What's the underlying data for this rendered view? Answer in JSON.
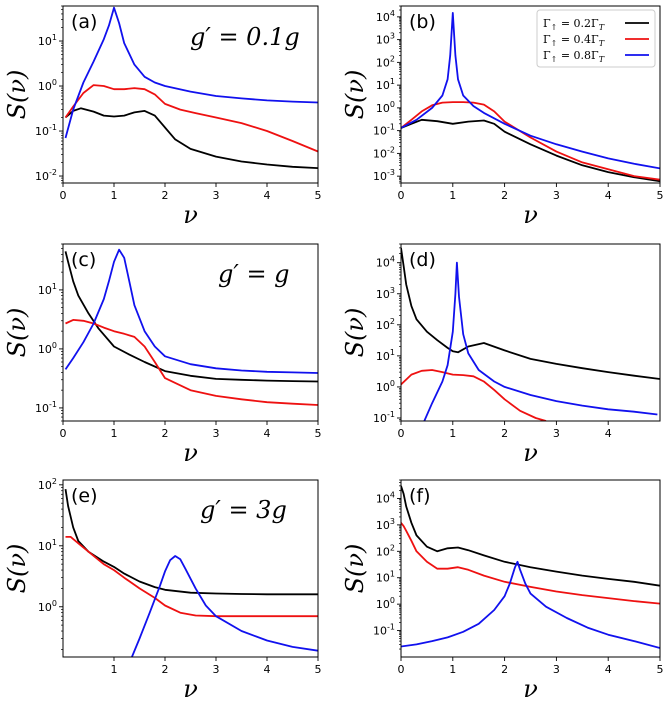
{
  "colors": {
    "black": "#000000",
    "red": "#ee1111",
    "blue": "#1111ee"
  },
  "legend": [
    {
      "label": "Γ↑ = 0.2Γ_T",
      "color": "#000000",
      "parts": [
        "Γ",
        "↑",
        " = 0.2Γ",
        "T"
      ]
    },
    {
      "label": "Γ↑ = 0.4Γ_T",
      "color": "#ee1111",
      "parts": [
        "Γ",
        "↑",
        " = 0.4Γ",
        "T"
      ]
    },
    {
      "label": "Γ↑ = 0.8Γ_T",
      "color": "#1111ee",
      "parts": [
        "Γ",
        "↑",
        " = 0.8Γ",
        "T"
      ]
    }
  ],
  "chart_data": [
    {
      "type": "line",
      "panel": "(a)",
      "annotation": "g′ = 0.1g",
      "xlabel": "ν",
      "ylabel": "S(ν)",
      "xlim": [
        0,
        5
      ],
      "ylim": [
        0.007,
        60
      ],
      "yscale": "log",
      "xticks": [
        "0",
        "1",
        "2",
        "3",
        "4",
        "5"
      ],
      "yticks": [
        {
          "v": 0.01,
          "e": "-2"
        },
        {
          "v": 0.1,
          "e": "-1"
        },
        {
          "v": 1,
          "e": "0"
        },
        {
          "v": 10,
          "e": "1"
        }
      ],
      "series": [
        {
          "color": "black",
          "x": [
            0.05,
            0.2,
            0.35,
            0.6,
            0.8,
            1.0,
            1.2,
            1.4,
            1.6,
            1.8,
            2.0,
            2.2,
            2.5,
            3.0,
            3.5,
            4.0,
            4.5,
            5.0
          ],
          "y": [
            0.2,
            0.28,
            0.32,
            0.27,
            0.22,
            0.21,
            0.22,
            0.26,
            0.28,
            0.22,
            0.12,
            0.065,
            0.04,
            0.027,
            0.021,
            0.018,
            0.016,
            0.015
          ]
        },
        {
          "color": "red",
          "x": [
            0.05,
            0.2,
            0.4,
            0.6,
            0.8,
            1.0,
            1.2,
            1.4,
            1.6,
            1.8,
            2.0,
            2.3,
            2.6,
            3.0,
            3.5,
            4.0,
            4.5,
            5.0
          ],
          "y": [
            0.2,
            0.35,
            0.7,
            1.05,
            1.0,
            0.85,
            0.85,
            0.9,
            0.85,
            0.65,
            0.4,
            0.3,
            0.25,
            0.2,
            0.15,
            0.1,
            0.06,
            0.035
          ]
        },
        {
          "color": "blue",
          "x": [
            0.05,
            0.2,
            0.4,
            0.6,
            0.8,
            0.9,
            1.0,
            1.1,
            1.2,
            1.4,
            1.6,
            1.8,
            2.0,
            2.5,
            3.0,
            3.5,
            4.0,
            4.5,
            5.0
          ],
          "y": [
            0.07,
            0.3,
            1.2,
            3.5,
            11,
            22,
            55,
            25,
            9,
            3.0,
            1.6,
            1.2,
            1.0,
            0.75,
            0.6,
            0.53,
            0.48,
            0.45,
            0.43
          ]
        }
      ]
    },
    {
      "type": "line",
      "panel": "(b)",
      "annotation": "",
      "xlabel": "ν",
      "ylabel": "S(ν)",
      "xlim": [
        0,
        5
      ],
      "ylim": [
        0.0005,
        30000
      ],
      "yscale": "log",
      "xticks": [
        "0",
        "1",
        "2",
        "3",
        "4",
        "5"
      ],
      "yticks": [
        {
          "v": 0.001,
          "e": "-3"
        },
        {
          "v": 0.01,
          "e": "-2"
        },
        {
          "v": 0.1,
          "e": "-1"
        },
        {
          "v": 1,
          "e": "0"
        },
        {
          "v": 10,
          "e": "1"
        },
        {
          "v": 100,
          "e": "2"
        },
        {
          "v": 1000,
          "e": "3"
        },
        {
          "v": 10000,
          "e": "4"
        }
      ],
      "series": [
        {
          "color": "black",
          "x": [
            0,
            0.2,
            0.4,
            0.7,
            1.0,
            1.3,
            1.6,
            1.8,
            2.0,
            2.5,
            3.0,
            3.5,
            4.0,
            4.5,
            5.0
          ],
          "y": [
            0.13,
            0.2,
            0.3,
            0.26,
            0.2,
            0.25,
            0.28,
            0.2,
            0.09,
            0.025,
            0.008,
            0.003,
            0.0015,
            0.0009,
            0.0006
          ]
        },
        {
          "color": "red",
          "x": [
            0,
            0.2,
            0.4,
            0.6,
            0.8,
            1.0,
            1.2,
            1.4,
            1.6,
            1.8,
            2.0,
            2.5,
            3.0,
            3.5,
            4.0,
            4.5,
            5.0
          ],
          "y": [
            0.13,
            0.3,
            0.7,
            1.3,
            1.7,
            1.8,
            1.8,
            1.7,
            1.4,
            0.7,
            0.25,
            0.05,
            0.012,
            0.004,
            0.002,
            0.001,
            0.0007
          ]
        },
        {
          "color": "blue",
          "x": [
            0,
            0.3,
            0.6,
            0.8,
            0.9,
            0.95,
            1.0,
            1.05,
            1.1,
            1.2,
            1.4,
            1.6,
            2.0,
            2.5,
            3.0,
            3.5,
            4.0,
            4.5,
            5.0
          ],
          "y": [
            0.13,
            0.3,
            1.0,
            3.5,
            18,
            200,
            15000,
            200,
            18,
            3.5,
            1.2,
            0.6,
            0.2,
            0.06,
            0.025,
            0.012,
            0.006,
            0.0035,
            0.0022
          ]
        }
      ]
    },
    {
      "type": "line",
      "panel": "(c)",
      "annotation": "g′ = g",
      "xlabel": "ν",
      "ylabel": "S(ν)",
      "xlim": [
        0,
        5
      ],
      "ylim": [
        0.06,
        60
      ],
      "yscale": "log",
      "xticks": [
        "0",
        "1",
        "2",
        "3",
        "4",
        "5"
      ],
      "yticks": [
        {
          "v": 0.1,
          "e": "-1"
        },
        {
          "v": 1,
          "e": "0"
        },
        {
          "v": 10,
          "e": "1"
        }
      ],
      "series": [
        {
          "color": "black",
          "x": [
            0.05,
            0.1,
            0.2,
            0.3,
            0.5,
            0.7,
            1.0,
            1.3,
            1.6,
            2.0,
            2.5,
            3.0,
            3.5,
            4.0,
            4.5,
            5.0
          ],
          "y": [
            45,
            30,
            14,
            8,
            4,
            2.2,
            1.1,
            0.8,
            0.6,
            0.42,
            0.35,
            0.31,
            0.3,
            0.29,
            0.285,
            0.28
          ]
        },
        {
          "color": "red",
          "x": [
            0.05,
            0.2,
            0.4,
            0.6,
            0.8,
            1.0,
            1.2,
            1.4,
            1.6,
            1.8,
            2.0,
            2.5,
            3.0,
            3.5,
            4.0,
            4.5,
            5.0
          ],
          "y": [
            2.7,
            3.1,
            3.0,
            2.7,
            2.3,
            2.0,
            1.8,
            1.6,
            1.1,
            0.6,
            0.32,
            0.2,
            0.16,
            0.14,
            0.125,
            0.118,
            0.112
          ]
        },
        {
          "color": "blue",
          "x": [
            0.05,
            0.2,
            0.4,
            0.6,
            0.8,
            0.9,
            1.0,
            1.1,
            1.2,
            1.3,
            1.4,
            1.6,
            1.8,
            2.0,
            2.5,
            3.0,
            3.5,
            4.0,
            4.5,
            5.0
          ],
          "y": [
            0.45,
            0.7,
            1.3,
            2.7,
            7,
            14,
            30,
            48,
            35,
            14,
            5.5,
            2.0,
            1.1,
            0.75,
            0.55,
            0.47,
            0.43,
            0.41,
            0.4,
            0.39
          ]
        }
      ]
    },
    {
      "type": "line",
      "panel": "(d)",
      "annotation": "",
      "xlabel": "ν",
      "ylabel": "S(ν)",
      "xlim": [
        0,
        5
      ],
      "ylim": [
        0.08,
        40000
      ],
      "yscale": "log",
      "xticks": [
        "0",
        "1",
        "2",
        "3",
        "4"
      ],
      "yticks": [
        {
          "v": 0.1,
          "e": "-1"
        },
        {
          "v": 1,
          "e": "0"
        },
        {
          "v": 10,
          "e": "1"
        },
        {
          "v": 100,
          "e": "2"
        },
        {
          "v": 1000,
          "e": "3"
        },
        {
          "v": 10000,
          "e": "4"
        }
      ],
      "series": [
        {
          "color": "black",
          "x": [
            0,
            0.05,
            0.1,
            0.2,
            0.3,
            0.5,
            0.7,
            0.9,
            1.0,
            1.1,
            1.3,
            1.6,
            2.0,
            2.5,
            3.0,
            3.5,
            4.0,
            4.5,
            5.0
          ],
          "y": [
            30000,
            8000,
            2000,
            400,
            150,
            60,
            32,
            18,
            14,
            13,
            20,
            26,
            15,
            8,
            5.5,
            4,
            3,
            2.3,
            1.8
          ]
        },
        {
          "color": "red",
          "x": [
            0,
            0.2,
            0.4,
            0.6,
            0.8,
            1.0,
            1.2,
            1.4,
            1.6,
            1.8,
            2.0,
            2.3,
            2.6,
            2.8
          ],
          "y": [
            1.2,
            2.5,
            3.3,
            3.5,
            3.0,
            2.5,
            2.4,
            2.2,
            1.5,
            0.8,
            0.4,
            0.17,
            0.1,
            0.08
          ]
        },
        {
          "color": "blue",
          "x": [
            0.45,
            0.6,
            0.8,
            0.9,
            1.0,
            1.05,
            1.08,
            1.12,
            1.2,
            1.3,
            1.5,
            1.8,
            2.0,
            2.5,
            3.0,
            3.5,
            4.0,
            4.5,
            4.95
          ],
          "y": [
            0.08,
            0.3,
            1.5,
            5,
            60,
            1000,
            10000,
            800,
            50,
            12,
            3.5,
            1.5,
            1.0,
            0.55,
            0.35,
            0.25,
            0.19,
            0.16,
            0.13
          ]
        }
      ]
    },
    {
      "type": "line",
      "panel": "(e)",
      "annotation": "g′ = 3g",
      "xlabel": "ν",
      "ylabel": "S(ν)",
      "xlim": [
        0,
        5
      ],
      "ylim": [
        0.15,
        120
      ],
      "yscale": "log",
      "xticks": [
        "1",
        "2",
        "3",
        "4",
        "5"
      ],
      "yticks": [
        {
          "v": 1,
          "e": "0"
        },
        {
          "v": 10,
          "e": "1"
        },
        {
          "v": 100,
          "e": "2"
        }
      ],
      "series": [
        {
          "color": "black",
          "x": [
            0.05,
            0.1,
            0.2,
            0.3,
            0.5,
            0.8,
            1.0,
            1.2,
            1.5,
            1.8,
            2.0,
            2.5,
            3.0,
            3.5,
            4.0,
            4.5,
            5.0
          ],
          "y": [
            85,
            45,
            20,
            12,
            8,
            5.5,
            4.5,
            3.5,
            2.6,
            2.1,
            1.9,
            1.7,
            1.65,
            1.62,
            1.6,
            1.6,
            1.6
          ]
        },
        {
          "color": "red",
          "x": [
            0.05,
            0.15,
            0.3,
            0.5,
            0.8,
            1.0,
            1.2,
            1.5,
            1.8,
            2.0,
            2.3,
            2.6,
            3.0,
            3.5,
            4.0,
            4.5,
            5.0
          ],
          "y": [
            14,
            14,
            11,
            8,
            5,
            4,
            3,
            2,
            1.4,
            1.05,
            0.8,
            0.72,
            0.7,
            0.7,
            0.7,
            0.7,
            0.7
          ]
        },
        {
          "color": "blue",
          "x": [
            1.35,
            1.5,
            1.7,
            1.9,
            2.0,
            2.1,
            2.2,
            2.3,
            2.4,
            2.6,
            2.8,
            3.0,
            3.5,
            4.0,
            4.5,
            5.0
          ],
          "y": [
            0.15,
            0.3,
            0.8,
            2.2,
            3.8,
            5.8,
            6.8,
            6.0,
            4.2,
            2.0,
            1.05,
            0.7,
            0.4,
            0.28,
            0.22,
            0.19
          ]
        }
      ]
    },
    {
      "type": "line",
      "panel": "(f)",
      "annotation": "",
      "xlabel": "ν",
      "ylabel": "S(ν)",
      "xlim": [
        0,
        5
      ],
      "ylim": [
        0.01,
        50000
      ],
      "yscale": "log",
      "xticks": [
        "0",
        "1",
        "2",
        "3",
        "4",
        "5"
      ],
      "yticks": [
        {
          "v": 0.1,
          "e": "-1"
        },
        {
          "v": 1,
          "e": "0"
        },
        {
          "v": 10,
          "e": "1"
        },
        {
          "v": 100,
          "e": "2"
        },
        {
          "v": 1000,
          "e": "3"
        },
        {
          "v": 10000,
          "e": "4"
        }
      ],
      "series": [
        {
          "color": "black",
          "x": [
            0,
            0.05,
            0.1,
            0.2,
            0.3,
            0.5,
            0.7,
            0.9,
            1.1,
            1.3,
            1.6,
            2.0,
            2.5,
            3.0,
            3.5,
            4.0,
            4.5,
            5.0
          ],
          "y": [
            30000,
            15000,
            5000,
            1200,
            400,
            150,
            100,
            130,
            140,
            110,
            70,
            40,
            25,
            17,
            12,
            9,
            7,
            5
          ]
        },
        {
          "color": "red",
          "x": [
            0,
            0.05,
            0.1,
            0.2,
            0.3,
            0.5,
            0.7,
            0.9,
            1.1,
            1.3,
            1.6,
            2.0,
            2.5,
            3.0,
            3.5,
            4.0,
            4.5,
            5.0
          ],
          "y": [
            1200,
            900,
            600,
            250,
            100,
            40,
            22,
            22,
            25,
            20,
            12,
            7,
            4.5,
            3,
            2.2,
            1.7,
            1.3,
            1.05
          ]
        },
        {
          "color": "blue",
          "x": [
            0,
            0.3,
            0.6,
            0.9,
            1.2,
            1.5,
            1.8,
            2.0,
            2.1,
            2.2,
            2.25,
            2.3,
            2.4,
            2.5,
            2.8,
            3.2,
            3.6,
            4.0,
            4.5,
            5.0
          ],
          "y": [
            0.025,
            0.03,
            0.04,
            0.055,
            0.09,
            0.18,
            0.6,
            2.0,
            6,
            25,
            40,
            20,
            6,
            2.5,
            0.8,
            0.3,
            0.13,
            0.07,
            0.04,
            0.022
          ]
        }
      ]
    }
  ]
}
